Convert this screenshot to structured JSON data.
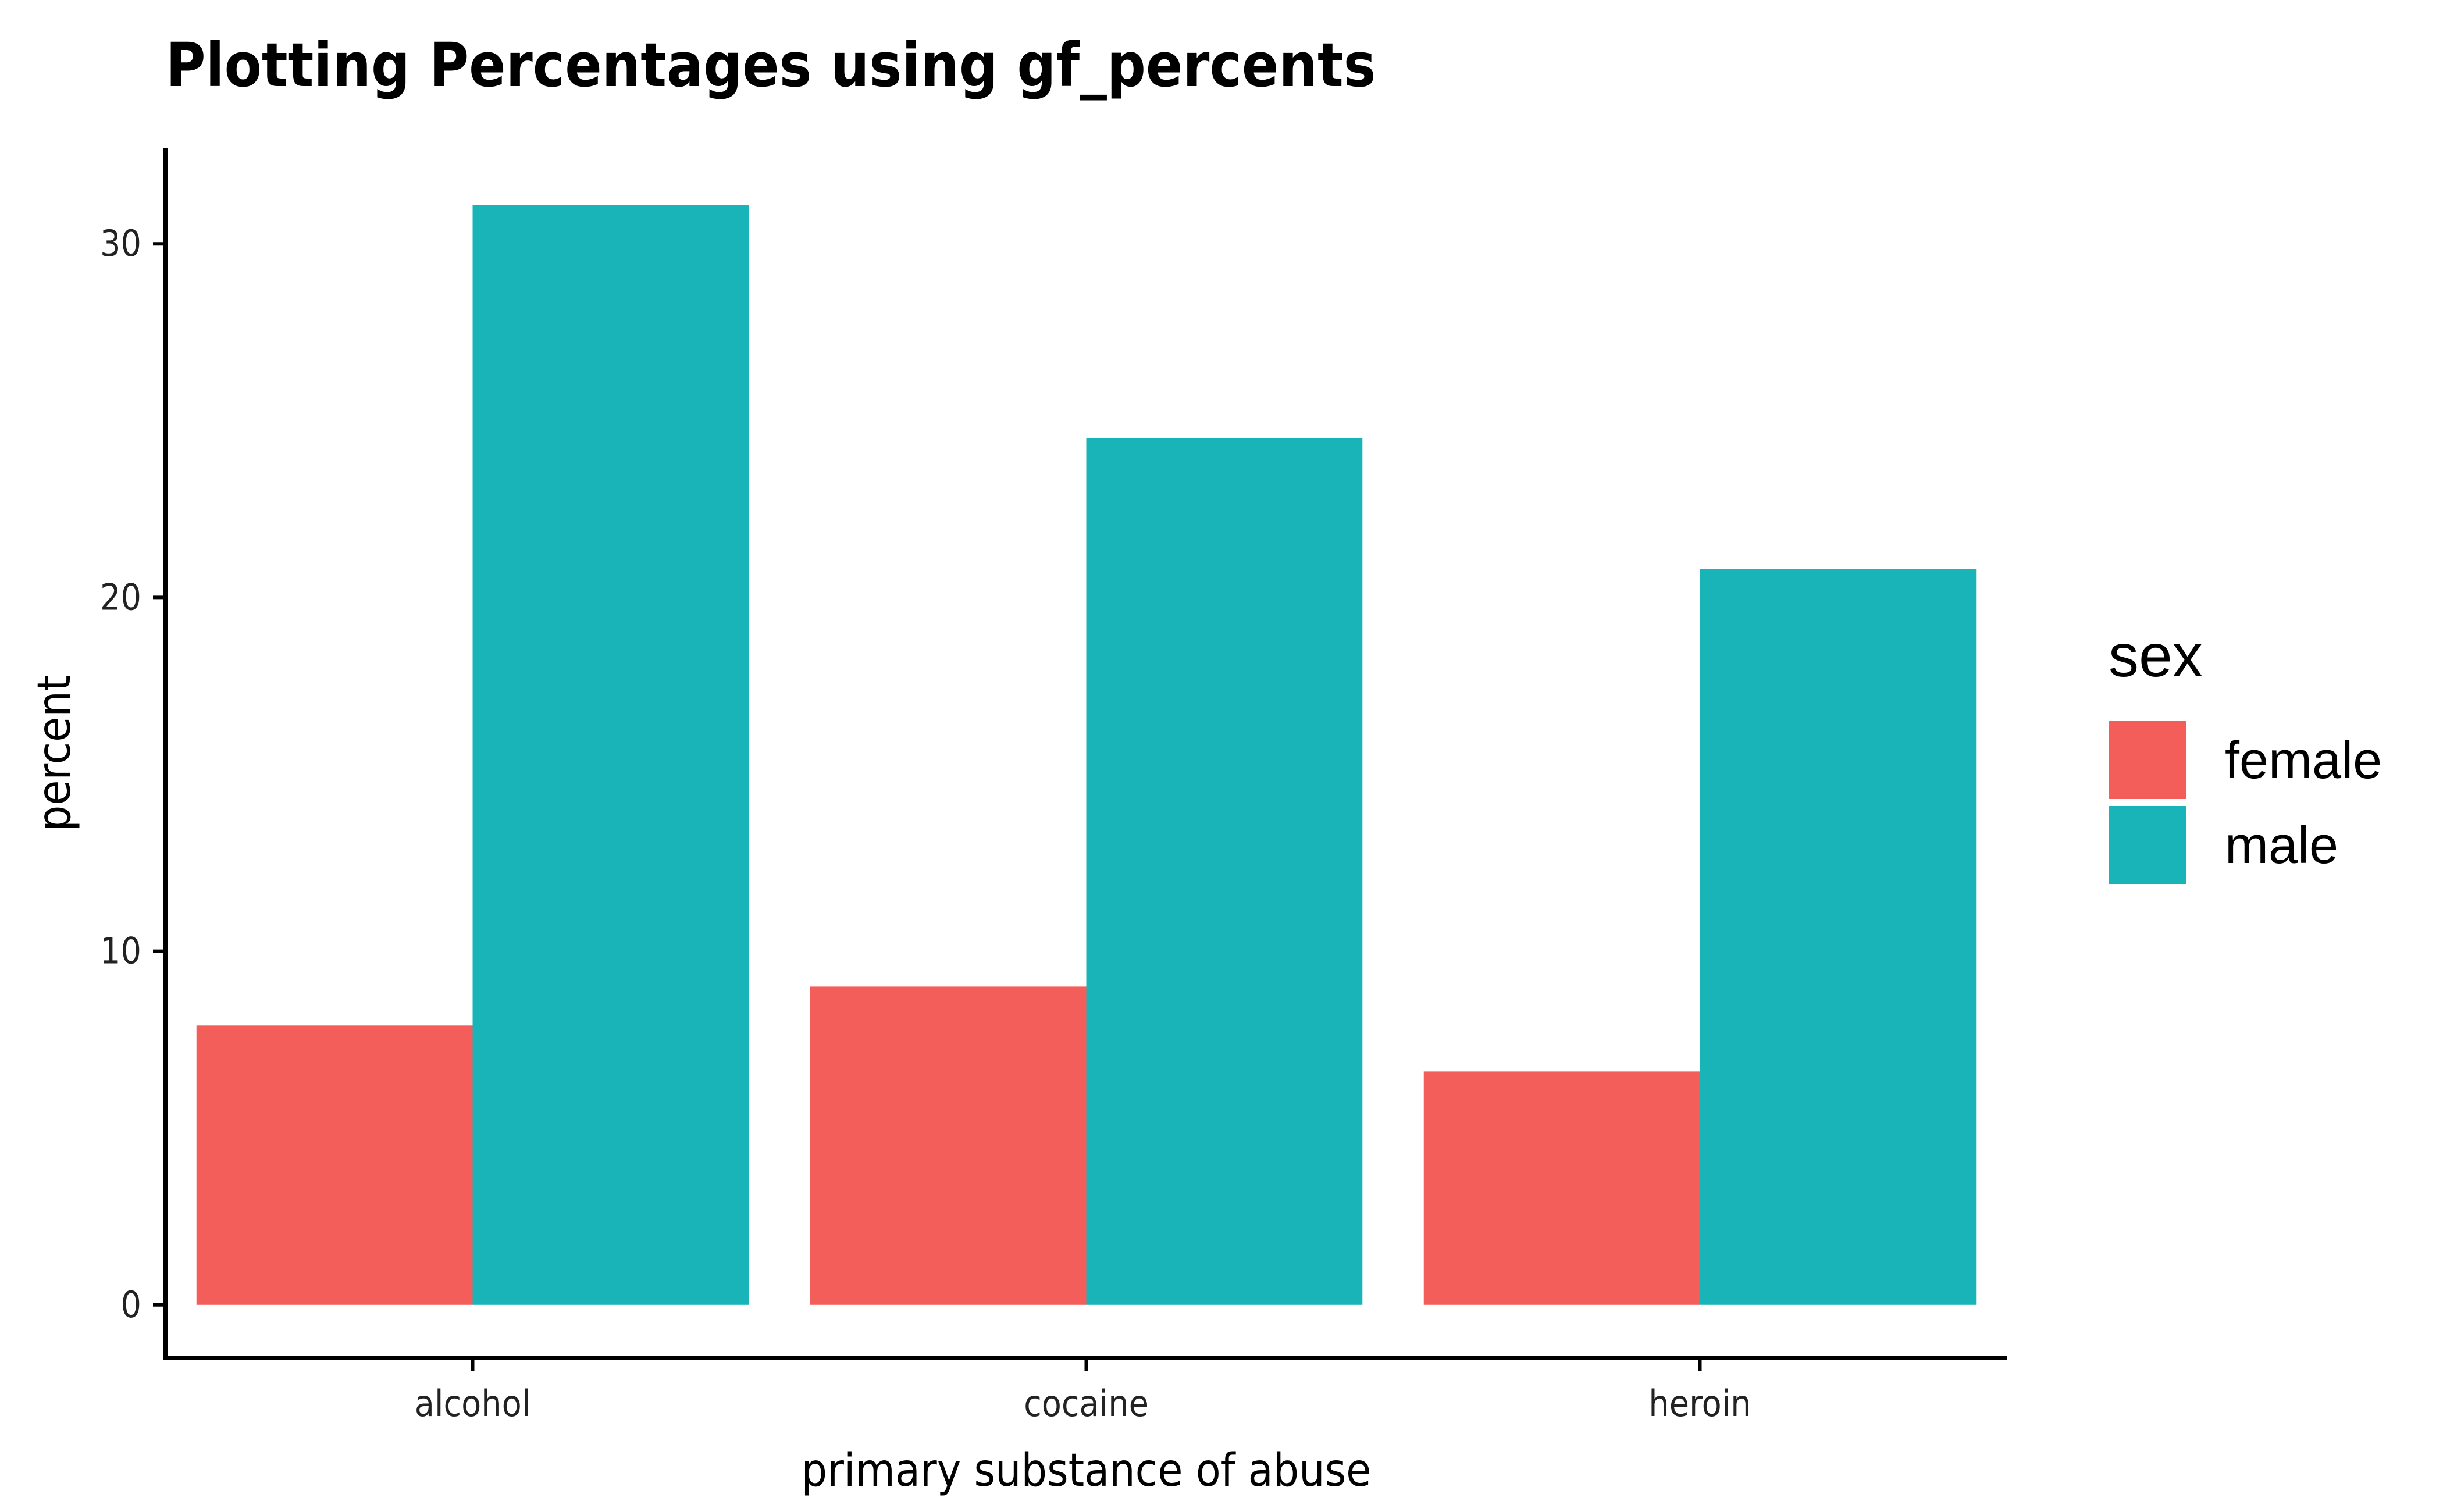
{
  "chart_data": {
    "type": "bar",
    "title": "Plotting Percentages using gf_percents",
    "xlabel": "primary substance of abuse",
    "ylabel": "percent",
    "categories": [
      "alcohol",
      "cocaine",
      "heroin"
    ],
    "series": [
      {
        "name": "female",
        "color": "#F35E5A",
        "values": [
          7.9,
          9.0,
          6.6
        ]
      },
      {
        "name": "male",
        "color": "#19B4B8",
        "values": [
          31.1,
          24.5,
          20.8
        ]
      }
    ],
    "y_ticks": [
      0,
      10,
      20,
      30
    ],
    "ylim": [
      -1.5,
      32.7
    ],
    "grid": false,
    "legend": {
      "title": "sex",
      "position": "right"
    }
  }
}
